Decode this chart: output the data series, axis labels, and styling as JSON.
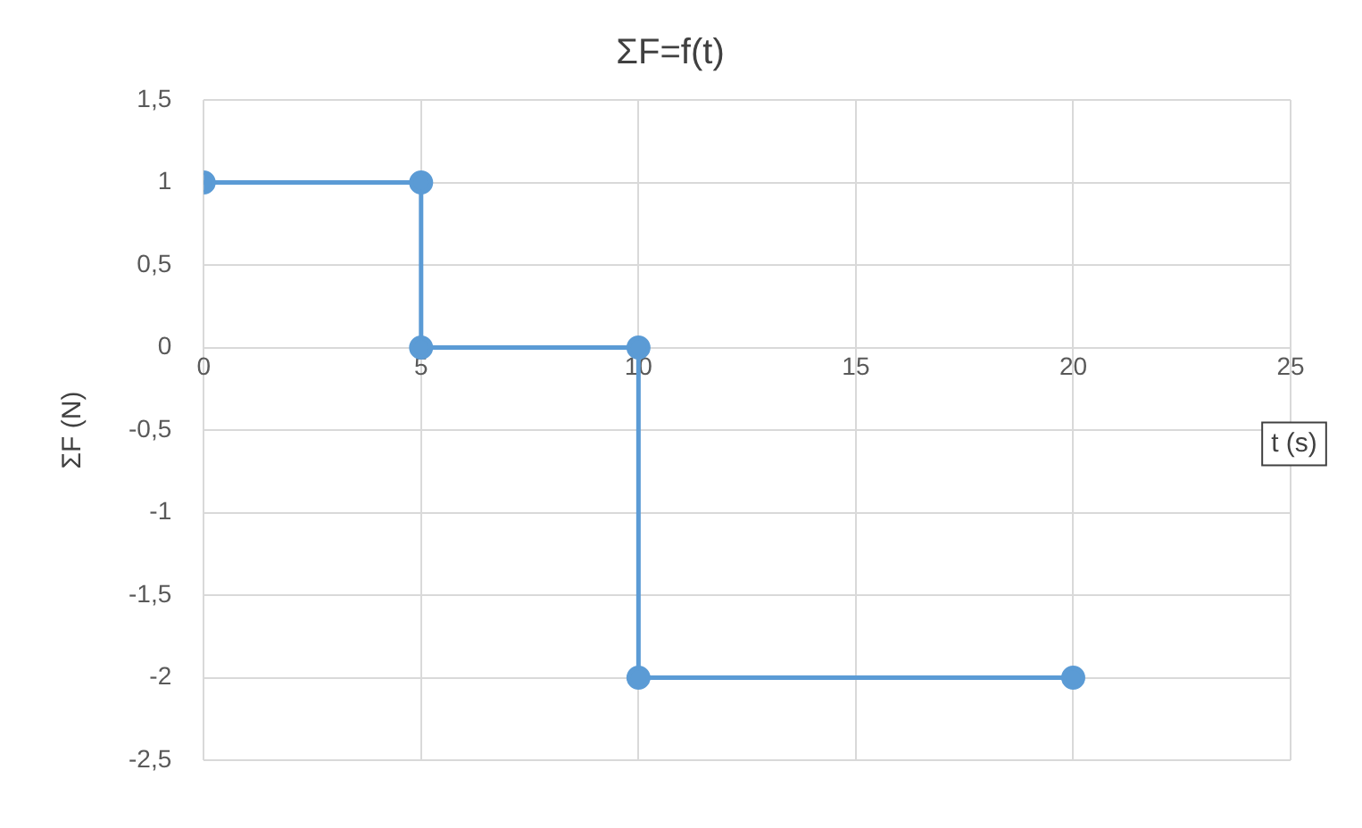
{
  "chart_data": {
    "type": "line",
    "title": "ΣF=f(t)",
    "xlabel": "t (s)",
    "ylabel": "ΣF (N)",
    "x": [
      0,
      5,
      5,
      10,
      10,
      20
    ],
    "series": [
      {
        "color": "#5b9bd5",
        "values": [
          1,
          1,
          0,
          0,
          -2,
          -2
        ]
      }
    ],
    "xlim": [
      0,
      25
    ],
    "xticks": [
      0,
      5,
      10,
      15,
      20,
      25
    ],
    "ylim": [
      -2.5,
      1.5
    ],
    "yticks": [
      {
        "value": -2.5,
        "label": "-2,5"
      },
      -2,
      {
        "value": -1.5,
        "label": "-1,5"
      },
      -1,
      {
        "value": -0.5,
        "label": "-0,5"
      },
      0,
      {
        "value": 0.5,
        "label": "0,5"
      },
      1,
      {
        "value": 1.5,
        "label": "1,5"
      }
    ],
    "grid": true,
    "legend": false,
    "marker": "circle",
    "line_style": "solid"
  }
}
